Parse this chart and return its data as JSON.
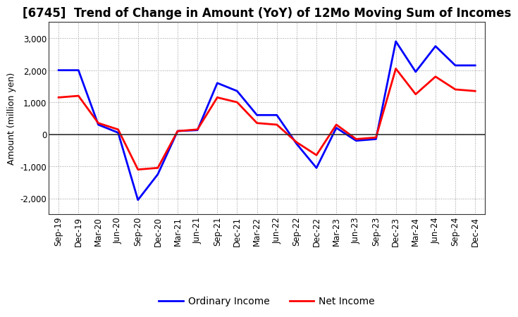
{
  "title": "[6745]  Trend of Change in Amount (YoY) of 12Mo Moving Sum of Incomes",
  "ylabel": "Amount (million yen)",
  "xlabels": [
    "Sep-19",
    "Dec-19",
    "Mar-20",
    "Jun-20",
    "Sep-20",
    "Dec-20",
    "Mar-21",
    "Jun-21",
    "Sep-21",
    "Dec-21",
    "Mar-22",
    "Jun-22",
    "Sep-22",
    "Dec-22",
    "Mar-23",
    "Jun-23",
    "Sep-23",
    "Dec-23",
    "Mar-24",
    "Jun-24",
    "Sep-24",
    "Dec-24"
  ],
  "ordinary_income": [
    2000,
    2000,
    300,
    50,
    -2050,
    -1250,
    100,
    130,
    1600,
    1350,
    600,
    600,
    -300,
    -1050,
    200,
    -200,
    -150,
    2900,
    1950,
    2750,
    2150,
    2150
  ],
  "net_income": [
    1150,
    1200,
    350,
    150,
    -1100,
    -1050,
    100,
    150,
    1150,
    1000,
    350,
    300,
    -250,
    -650,
    300,
    -150,
    -100,
    2050,
    1250,
    1800,
    1400,
    1350
  ],
  "ordinary_color": "#0000FF",
  "net_color": "#FF0000",
  "ylim": [
    -2500,
    3500
  ],
  "yticks": [
    -2000,
    -1000,
    0,
    1000,
    2000,
    3000
  ],
  "background_color": "#FFFFFF",
  "grid_color": "#999999",
  "title_fontsize": 12,
  "axis_fontsize": 8.5,
  "legend_fontsize": 10
}
